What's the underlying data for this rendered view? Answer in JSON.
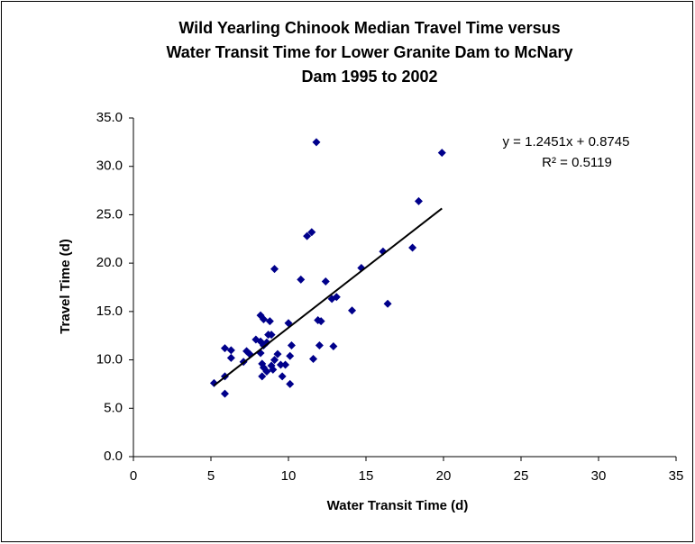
{
  "chart_data": {
    "type": "scatter",
    "title": [
      "Wild Yearling Chinook Median Travel Time versus",
      "Water Transit Time for  Lower Granite Dam to McNary",
      "Dam 1995 to 2002"
    ],
    "x_label": "Water Transit Time (d)",
    "y_label": "Travel Time (d)",
    "xlim": [
      0,
      35
    ],
    "xticks": [
      0,
      5,
      10,
      15,
      20,
      25,
      30,
      35
    ],
    "ylim": [
      0,
      35
    ],
    "yticks": [
      {
        "value": 0,
        "label": "0.0"
      },
      {
        "value": 5,
        "label": "5.0"
      },
      {
        "value": 10,
        "label": "10.0"
      },
      {
        "value": 15,
        "label": "15.0"
      },
      {
        "value": 20,
        "label": "20.0"
      },
      {
        "value": 25,
        "label": "25.0"
      },
      {
        "value": 30,
        "label": "30.0"
      },
      {
        "value": 35,
        "label": "35.0"
      }
    ],
    "color": "#00008b",
    "x": [
      5.2,
      5.9,
      5.9,
      5.9,
      6.3,
      6.3,
      7.1,
      7.3,
      7.5,
      7.9,
      8.2,
      8.2,
      8.4,
      8.2,
      8.4,
      8.3,
      8.4,
      8.3,
      8.6,
      8.6,
      8.7,
      8.8,
      8.9,
      9.0,
      8.9,
      9.1,
      9.1,
      9.3,
      9.5,
      9.6,
      9.8,
      10.0,
      10.1,
      10.1,
      10.2,
      10.8,
      11.2,
      11.5,
      11.6,
      11.8,
      11.9,
      12.1,
      12.0,
      12.4,
      12.8,
      13.1,
      12.9,
      14.1,
      14.7,
      16.1,
      16.4,
      18.0,
      18.4,
      19.9
    ],
    "values": [
      7.6,
      8.3,
      6.5,
      11.2,
      11.0,
      10.2,
      9.8,
      10.9,
      10.6,
      12.1,
      11.9,
      14.6,
      14.2,
      10.7,
      11.5,
      9.6,
      9.2,
      8.3,
      8.8,
      11.8,
      12.6,
      14.0,
      9.4,
      9.0,
      12.6,
      10.0,
      19.4,
      10.6,
      9.5,
      8.3,
      9.5,
      13.8,
      10.4,
      7.5,
      11.5,
      18.3,
      22.8,
      23.2,
      10.1,
      32.5,
      14.1,
      14.0,
      11.5,
      18.1,
      16.3,
      16.5,
      11.4,
      15.1,
      19.5,
      21.2,
      15.8,
      21.6,
      26.4,
      31.4
    ],
    "trendline": {
      "slope": 1.2451,
      "intercept": 0.8745,
      "equation": "y = 1.2451x + 0.8745",
      "r_squared_label": "R² = 0.5119",
      "color": "#000000"
    }
  }
}
